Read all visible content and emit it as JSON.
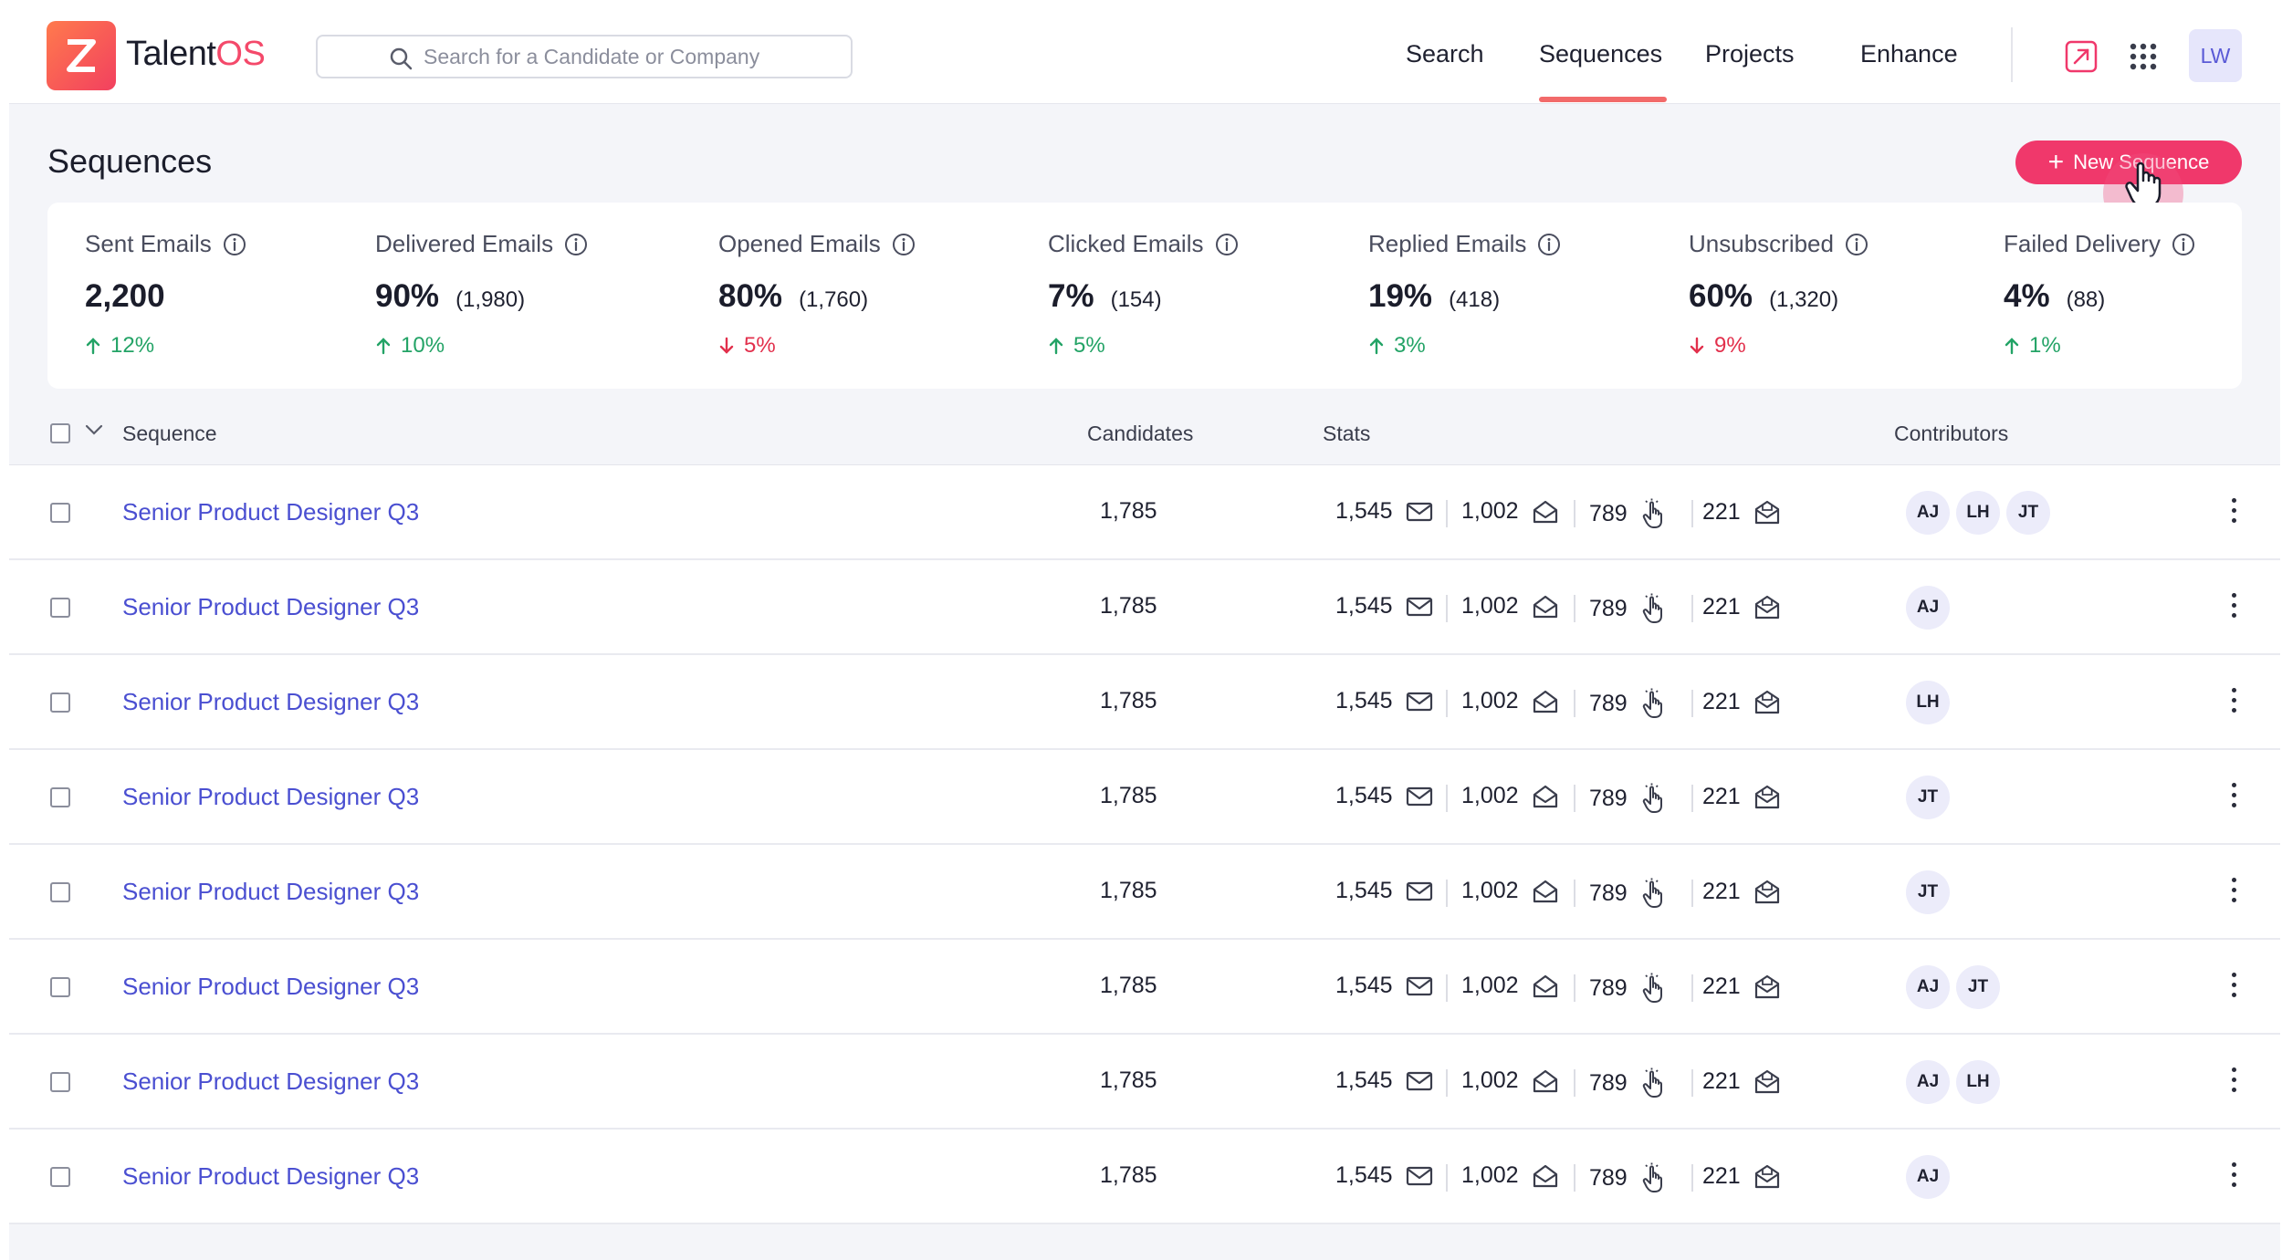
{
  "app": {
    "name_prefix": "Talent",
    "name_suffix": "OS"
  },
  "search": {
    "placeholder": "Search for a Candidate or Company"
  },
  "nav": [
    {
      "label": "Search",
      "active": false
    },
    {
      "label": "Sequences",
      "active": true
    },
    {
      "label": "Projects",
      "active": false
    },
    {
      "label": "Enhance",
      "active": false
    }
  ],
  "header_icons": [
    "external-link-icon",
    "apps-grid-icon"
  ],
  "user": {
    "initials": "LW"
  },
  "page": {
    "title": "Sequences",
    "new_button": "New Sequence"
  },
  "stats": [
    {
      "label": "Sent Emails",
      "value": "2,200",
      "sub": "",
      "delta": "12%",
      "direction": "up"
    },
    {
      "label": "Delivered Emails",
      "value": "90%",
      "sub": "(1,980)",
      "delta": "10%",
      "direction": "up"
    },
    {
      "label": "Opened Emails",
      "value": "80%",
      "sub": "(1,760)",
      "delta": "5%",
      "direction": "down"
    },
    {
      "label": "Clicked Emails",
      "value": "7%",
      "sub": "(154)",
      "delta": "5%",
      "direction": "up"
    },
    {
      "label": "Replied Emails",
      "value": "19%",
      "sub": "(418)",
      "delta": "3%",
      "direction": "up"
    },
    {
      "label": "Unsubscribed",
      "value": "60%",
      "sub": "(1,320)",
      "delta": "9%",
      "direction": "down"
    },
    {
      "label": "Failed Delivery",
      "value": "4%",
      "sub": "(88)",
      "delta": "1%",
      "direction": "up"
    }
  ],
  "table": {
    "headers": {
      "sequence": "Sequence",
      "candidates": "Candidates",
      "stats": "Stats",
      "contributors": "Contributors"
    },
    "rows": [
      {
        "name": "Senior Product Designer Q3",
        "candidates": "1,785",
        "sent": "1,545",
        "opened": "1,002",
        "clicked": "789",
        "replied": "221",
        "contributors": [
          "AJ",
          "LH",
          "JT"
        ]
      },
      {
        "name": "Senior Product Designer Q3",
        "candidates": "1,785",
        "sent": "1,545",
        "opened": "1,002",
        "clicked": "789",
        "replied": "221",
        "contributors": [
          "AJ"
        ]
      },
      {
        "name": "Senior Product Designer Q3",
        "candidates": "1,785",
        "sent": "1,545",
        "opened": "1,002",
        "clicked": "789",
        "replied": "221",
        "contributors": [
          "LH"
        ]
      },
      {
        "name": "Senior Product Designer Q3",
        "candidates": "1,785",
        "sent": "1,545",
        "opened": "1,002",
        "clicked": "789",
        "replied": "221",
        "contributors": [
          "JT"
        ]
      },
      {
        "name": "Senior Product Designer Q3",
        "candidates": "1,785",
        "sent": "1,545",
        "opened": "1,002",
        "clicked": "789",
        "replied": "221",
        "contributors": [
          "JT"
        ]
      },
      {
        "name": "Senior Product Designer Q3",
        "candidates": "1,785",
        "sent": "1,545",
        "opened": "1,002",
        "clicked": "789",
        "replied": "221",
        "contributors": [
          "AJ",
          "JT"
        ]
      },
      {
        "name": "Senior Product Designer Q3",
        "candidates": "1,785",
        "sent": "1,545",
        "opened": "1,002",
        "clicked": "789",
        "replied": "221",
        "contributors": [
          "AJ",
          "LH"
        ]
      },
      {
        "name": "Senior Product Designer Q3",
        "candidates": "1,785",
        "sent": "1,545",
        "opened": "1,002",
        "clicked": "789",
        "replied": "221",
        "contributors": [
          "AJ"
        ]
      }
    ]
  },
  "colors": {
    "accent": "#f0386b",
    "link": "#4a4fd1",
    "up": "#23a366",
    "down": "#e2304c"
  }
}
